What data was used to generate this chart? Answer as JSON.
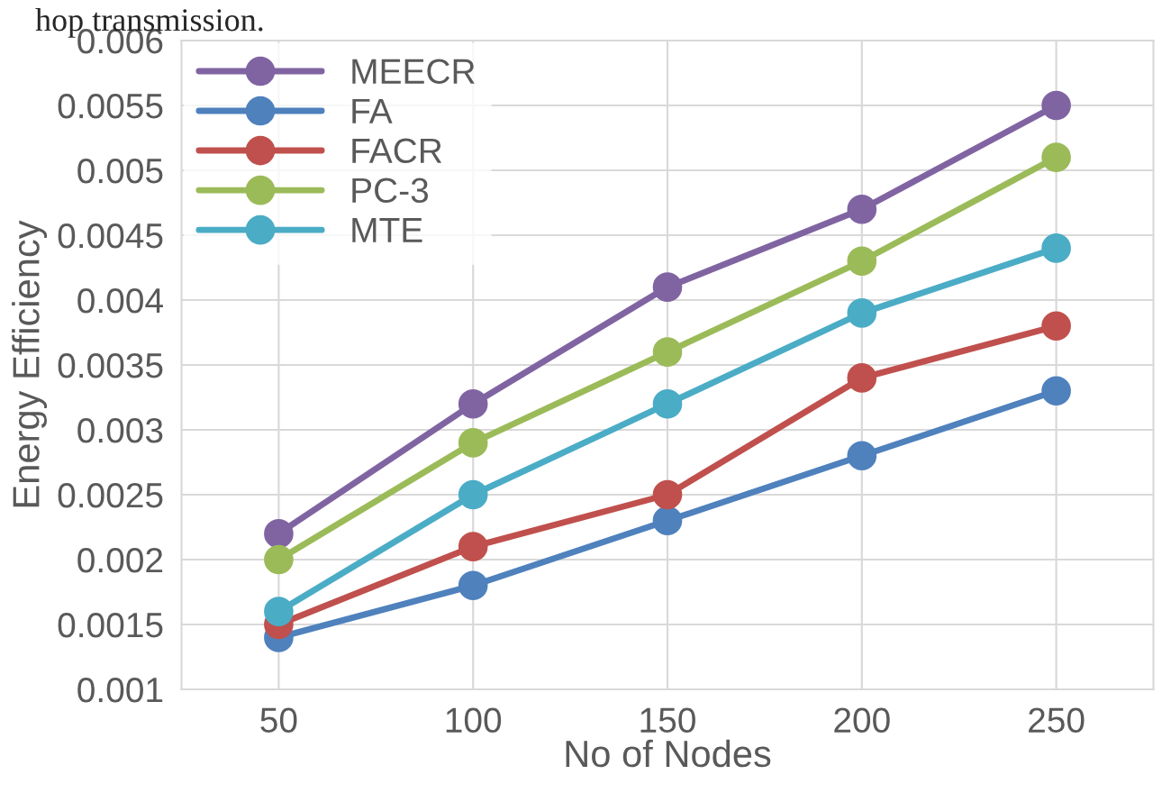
{
  "chart_data": {
    "type": "line",
    "xlabel": "No of Nodes",
    "ylabel": "Energy Efficiency",
    "annotations": [
      "hop transmission."
    ],
    "categories": [
      "50",
      "100",
      "150",
      "200",
      "250"
    ],
    "series": [
      {
        "name": "MEECR",
        "color": "#8064a2",
        "values": [
          0.0022,
          0.0032,
          0.0041,
          0.0047,
          0.0055
        ]
      },
      {
        "name": "FA",
        "color": "#4f81bd",
        "values": [
          0.0014,
          0.0018,
          0.0023,
          0.0028,
          0.0033
        ]
      },
      {
        "name": "FACR",
        "color": "#c0504d",
        "values": [
          0.0015,
          0.0021,
          0.0025,
          0.0034,
          0.0038
        ]
      },
      {
        "name": "PC-3",
        "color": "#9bbb59",
        "values": [
          0.002,
          0.0029,
          0.0036,
          0.0043,
          0.0051
        ]
      },
      {
        "name": "MTE",
        "color": "#4bacc6",
        "values": [
          0.0016,
          0.0025,
          0.0032,
          0.0039,
          0.0044
        ]
      }
    ],
    "ylim": [
      0.001,
      0.006
    ],
    "yticks": [
      0.001,
      0.0015,
      0.002,
      0.0025,
      0.003,
      0.0035,
      0.004,
      0.0045,
      0.005,
      0.0055,
      0.006
    ],
    "grid": true,
    "legend": "top left",
    "marker": "circle",
    "line_style": "solid"
  }
}
